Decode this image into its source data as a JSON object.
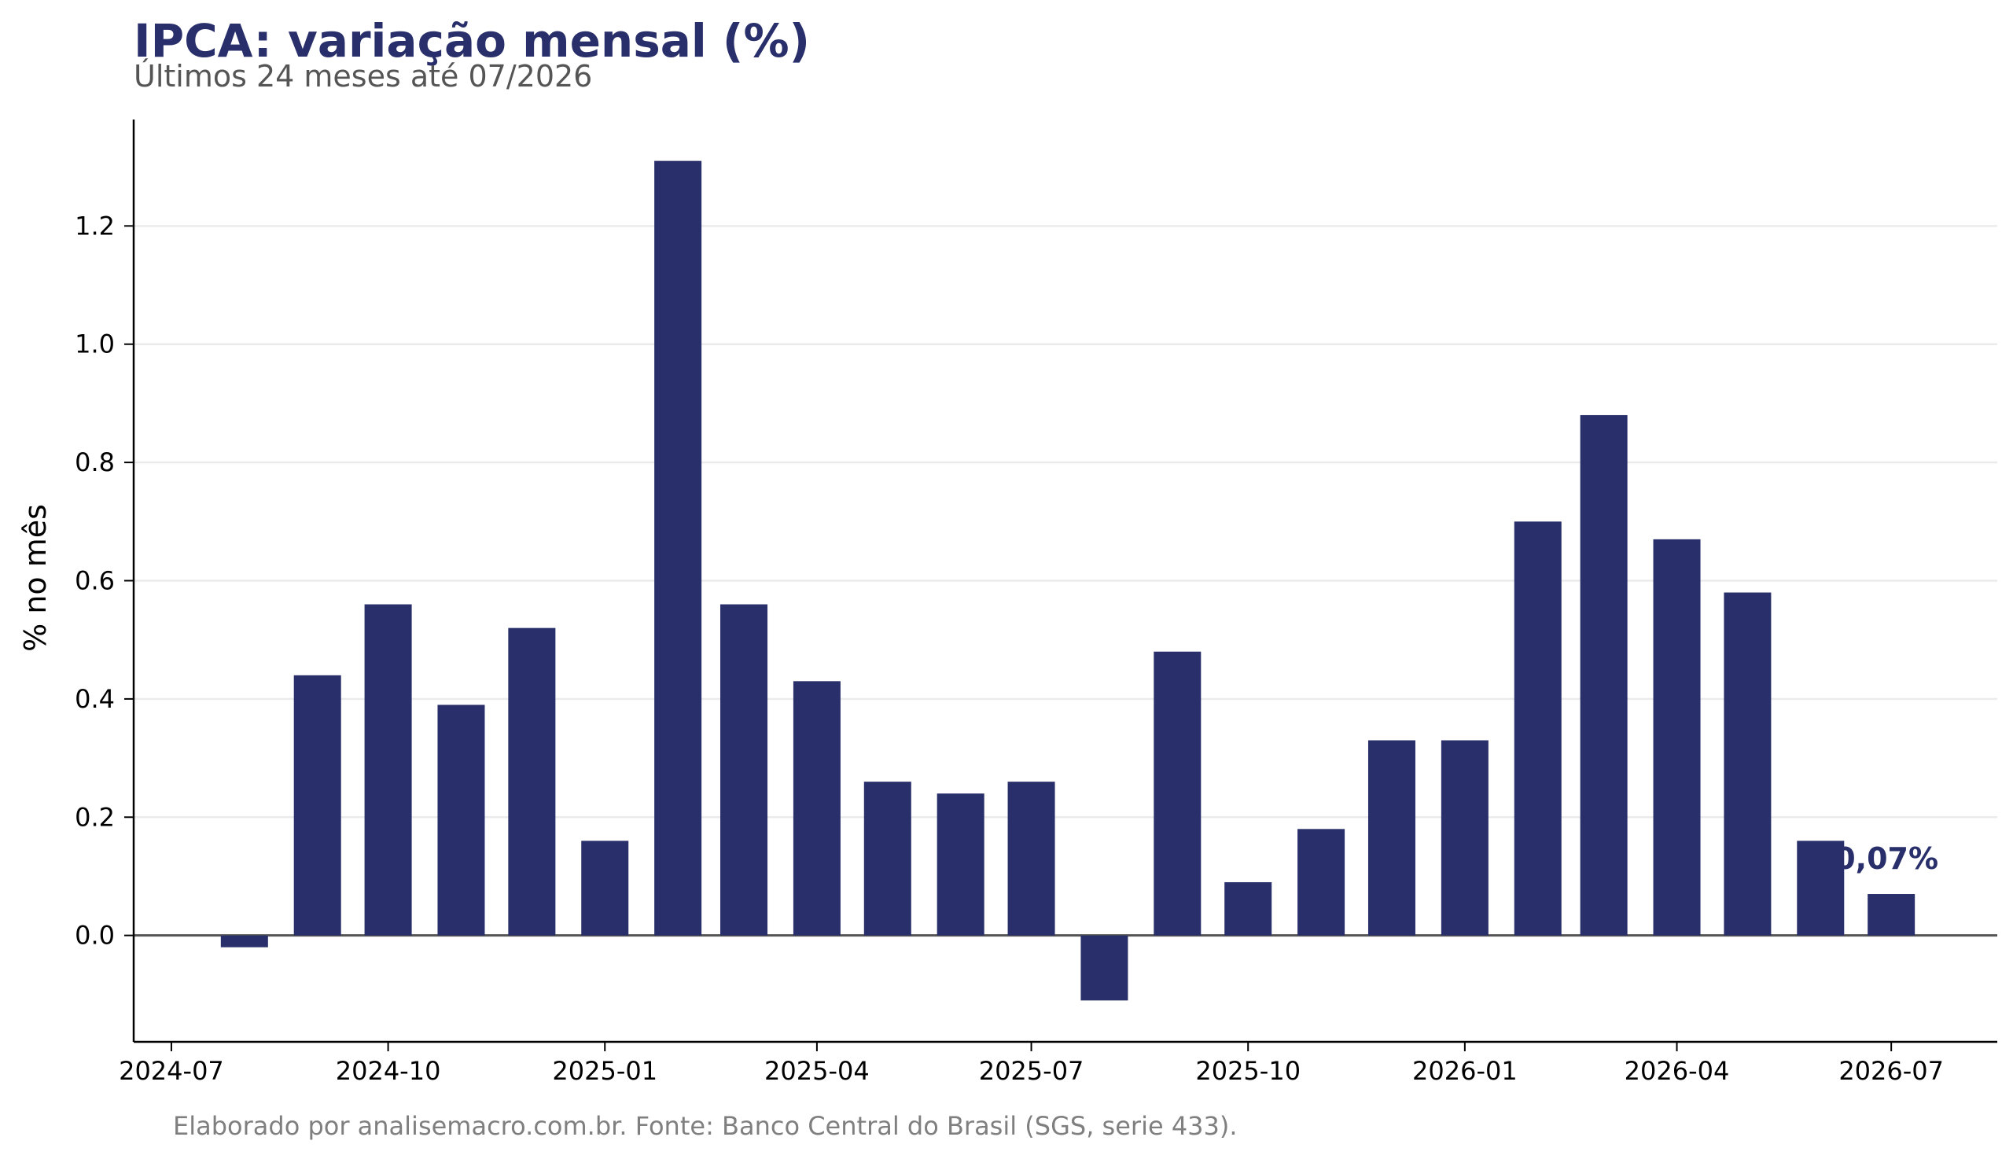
{
  "chart_data": {
    "type": "bar",
    "title": "IPCA: variação mensal (%)",
    "subtitle": "Últimos 24 meses até 07/2026",
    "xlabel": "",
    "ylabel": "% no mês",
    "caption": "Elaborado por analisemacro.com.br. Fonte: Banco Central do Brasil (SGS, serie 433).",
    "x": [
      "2024-08",
      "2024-09",
      "2024-10",
      "2024-11",
      "2024-12",
      "2025-01",
      "2025-02",
      "2025-03",
      "2025-04",
      "2025-05",
      "2025-06",
      "2025-07",
      "2025-08",
      "2025-09",
      "2025-10",
      "2025-11",
      "2025-12",
      "2026-01",
      "2026-02",
      "2026-03",
      "2026-04",
      "2026-05",
      "2026-06",
      "2026-07"
    ],
    "values": [
      -0.02,
      0.44,
      0.56,
      0.39,
      0.52,
      0.16,
      1.31,
      0.56,
      0.43,
      0.26,
      0.24,
      0.26,
      -0.11,
      0.48,
      0.09,
      0.18,
      0.33,
      0.33,
      0.7,
      0.88,
      0.67,
      0.58,
      0.16,
      0.07
    ],
    "xticks": [
      "2024-07",
      "2024-10",
      "2025-01",
      "2025-04",
      "2025-07",
      "2025-10",
      "2026-01",
      "2026-04",
      "2026-07"
    ],
    "yticks": [
      "0.0",
      "0.2",
      "0.4",
      "0.6",
      "0.8",
      "1.0",
      "1.2"
    ],
    "ylim": [
      -0.18,
      1.38
    ],
    "grid": true,
    "legend": "none",
    "annotation": {
      "label": "0,07%",
      "x": "2026-07",
      "y": 0.07
    },
    "colors": {
      "bar": "#292f6a",
      "grid": "#ebebeb",
      "zero_line": "#555555",
      "axis": "#000000"
    }
  }
}
